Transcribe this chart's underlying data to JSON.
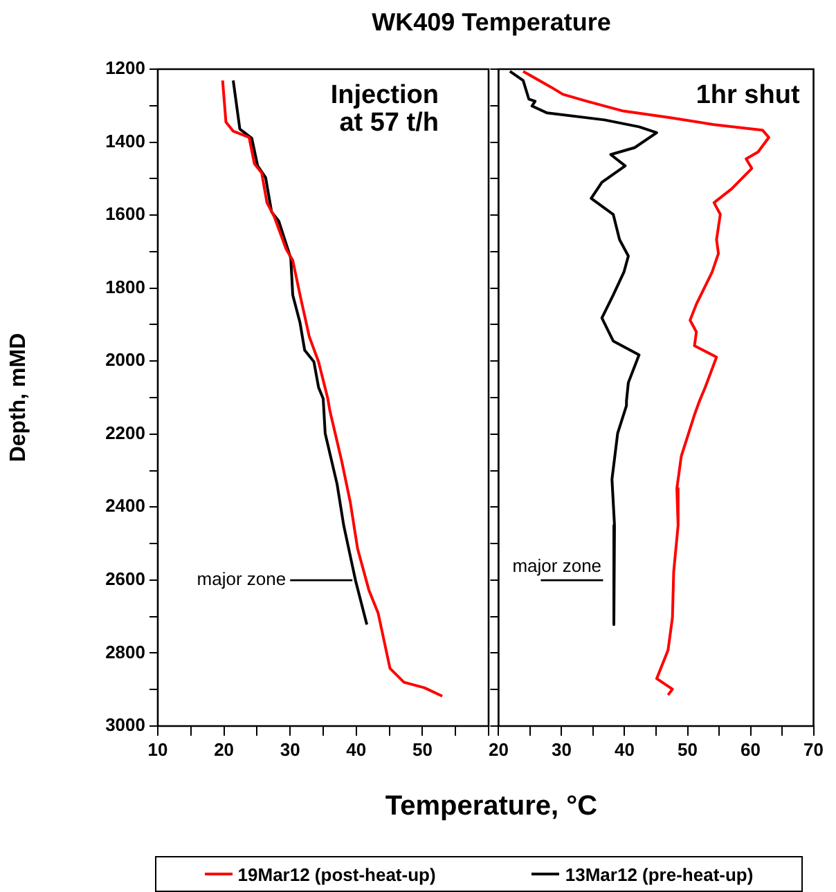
{
  "chart_data": [
    {
      "type": "line",
      "title": "WK409 Temperature",
      "xlabel": "Temperature, °C",
      "ylabel": "Depth, mMD",
      "legend": "bottom",
      "marker": "none",
      "grid": false,
      "xlim": [
        10,
        60
      ],
      "xticks": [
        10,
        {
          "value": 15,
          "label": null
        },
        20,
        {
          "value": 25,
          "label": null
        },
        30,
        {
          "value": 35,
          "label": null
        },
        40,
        {
          "value": 45,
          "label": null
        },
        50,
        {
          "value": 55,
          "label": null
        },
        {
          "value": 60,
          "label": null
        }
      ],
      "ylim": [
        3000,
        1200
      ],
      "yticks": [
        1200,
        {
          "value": 1300,
          "label": null
        },
        1400,
        {
          "value": 1500,
          "label": null
        },
        1600,
        {
          "value": 1700,
          "label": null
        },
        1800,
        {
          "value": 1900,
          "label": null
        },
        2000,
        {
          "value": 2100,
          "label": null
        },
        2200,
        {
          "value": 2300,
          "label": null
        },
        2400,
        {
          "value": 2500,
          "label": null
        },
        2600,
        {
          "value": 2700,
          "label": null
        },
        2800,
        {
          "value": 2900,
          "label": null
        },
        3000
      ],
      "annotations": [
        "Injection at 57 t/h",
        "major zone"
      ],
      "series": [
        {
          "name": "19Mar12 (post-heat-up)",
          "color": "#ff0000",
          "x": [
            19.8,
            20.3,
            21.4,
            23.8,
            24.6,
            25.7,
            26.5,
            27.6,
            29.4,
            30.4,
            31.5,
            32.9,
            34.3,
            35.7,
            36.0,
            37.8,
            39.1,
            40.2,
            41.9,
            43.3,
            45.1,
            47.2,
            50.3,
            53.0
          ],
          "values": [
            1231,
            1345,
            1370,
            1387,
            1459,
            1484,
            1566,
            1604,
            1693,
            1724,
            1819,
            1933,
            2002,
            2103,
            2135,
            2274,
            2387,
            2514,
            2627,
            2690,
            2842,
            2880,
            2895,
            2918
          ]
        },
        {
          "name": "13Mar12 (pre-heat-up)",
          "color": "#000000",
          "x": [
            21.4,
            22.4,
            24.2,
            25.1,
            26.3,
            27.2,
            28.3,
            30.1,
            30.4,
            31.5,
            32.2,
            33.6,
            34.3,
            35.0,
            35.3,
            37.1,
            38.1,
            39.9,
            41.6
          ],
          "values": [
            1231,
            1364,
            1389,
            1465,
            1497,
            1591,
            1617,
            1718,
            1819,
            1895,
            1970,
            2002,
            2072,
            2103,
            2198,
            2337,
            2450,
            2602,
            2722
          ]
        }
      ]
    },
    {
      "type": "line",
      "marker": "none",
      "grid": false,
      "tick_labels": "x",
      "xlim": [
        20,
        70
      ],
      "xticks": [
        20,
        {
          "value": 25,
          "label": null
        },
        30,
        {
          "value": 35,
          "label": null
        },
        40,
        {
          "value": 45,
          "label": null
        },
        50,
        {
          "value": 55,
          "label": null
        },
        60,
        {
          "value": 65,
          "label": null
        },
        70
      ],
      "ylim": [
        3000,
        1200
      ],
      "yticks": [
        {
          "value": 1200,
          "label": null
        },
        {
          "value": 1300,
          "label": null
        },
        {
          "value": 1400,
          "label": null
        },
        {
          "value": 1500,
          "label": null
        },
        {
          "value": 1600,
          "label": null
        },
        {
          "value": 1700,
          "label": null
        },
        {
          "value": 1800,
          "label": null
        },
        {
          "value": 1900,
          "label": null
        },
        {
          "value": 2000,
          "label": null
        },
        {
          "value": 2100,
          "label": null
        },
        {
          "value": 2200,
          "label": null
        },
        {
          "value": 2300,
          "label": null
        },
        {
          "value": 2400,
          "label": null
        },
        {
          "value": 2500,
          "label": null
        },
        {
          "value": 2600,
          "label": null
        },
        {
          "value": 2700,
          "label": null
        },
        {
          "value": 2800,
          "label": null
        },
        {
          "value": 2900,
          "label": null
        },
        {
          "value": 3000,
          "label": null
        }
      ],
      "annotations": [
        "1hr shut",
        "major zone"
      ],
      "series": [
        {
          "color": "#ff0000",
          "x": [
            23.9,
            28.4,
            30.2,
            34.0,
            39.6,
            47.3,
            54.2,
            61.9,
            62.9,
            61.2,
            59.3,
            60.2,
            57.0,
            54.2,
            55.2,
            54.6,
            54.9,
            53.9,
            51.4,
            50.4,
            51.4,
            51.1,
            54.6,
            52.8,
            51.9,
            51.1,
            49.0,
            48.3,
            48.5,
            47.8,
            47.6,
            46.9,
            45.1,
            47.6,
            46.9
          ],
          "values": [
            1206,
            1250,
            1269,
            1288,
            1314,
            1333,
            1352,
            1367,
            1387,
            1427,
            1446,
            1472,
            1528,
            1566,
            1598,
            1667,
            1705,
            1756,
            1844,
            1888,
            1920,
            1958,
            1989,
            2072,
            2109,
            2147,
            2261,
            2349,
            2450,
            2577,
            2703,
            2792,
            2870,
            2899,
            2915
          ]
        },
        {
          "color": "#000000",
          "x": [
            21.8,
            23.9,
            24.8,
            25.8,
            25.3,
            27.7,
            36.8,
            42.3,
            45.1,
            41.6,
            37.8,
            40.1,
            36.4,
            34.7,
            38.2,
            39.2,
            40.6,
            39.9,
            38.2,
            36.4,
            38.2,
            42.3,
            40.6,
            40.3,
            40.3,
            38.9,
            38.0,
            38.4,
            38.3
          ],
          "values": [
            1206,
            1231,
            1282,
            1288,
            1301,
            1320,
            1339,
            1358,
            1374,
            1415,
            1434,
            1465,
            1510,
            1554,
            1598,
            1667,
            1712,
            1756,
            1819,
            1882,
            1945,
            1983,
            2059,
            2109,
            2122,
            2198,
            2324,
            2450,
            2722
          ]
        }
      ]
    }
  ]
}
